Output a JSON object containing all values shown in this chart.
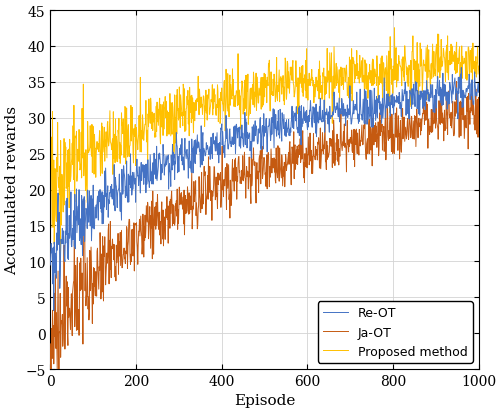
{
  "title": "",
  "xlabel": "Episode",
  "ylabel": "Accumulated rewards",
  "xlim": [
    0,
    1000
  ],
  "ylim": [
    -5,
    45
  ],
  "yticks": [
    -5,
    0,
    5,
    10,
    15,
    20,
    25,
    30,
    35,
    40,
    45
  ],
  "xticks": [
    0,
    200,
    400,
    600,
    800,
    1000
  ],
  "colors": {
    "Re-OT": "#4472C4",
    "Ja-OT": "#C55A11",
    "Proposed method": "#FFC000"
  },
  "legend_labels": [
    "Re-OT",
    "Ja-OT",
    "Proposed method"
  ],
  "legend_loc": "lower right",
  "n_episodes": 1001,
  "background_color": "#FFFFFF",
  "grid_color": "#D3D3D3"
}
